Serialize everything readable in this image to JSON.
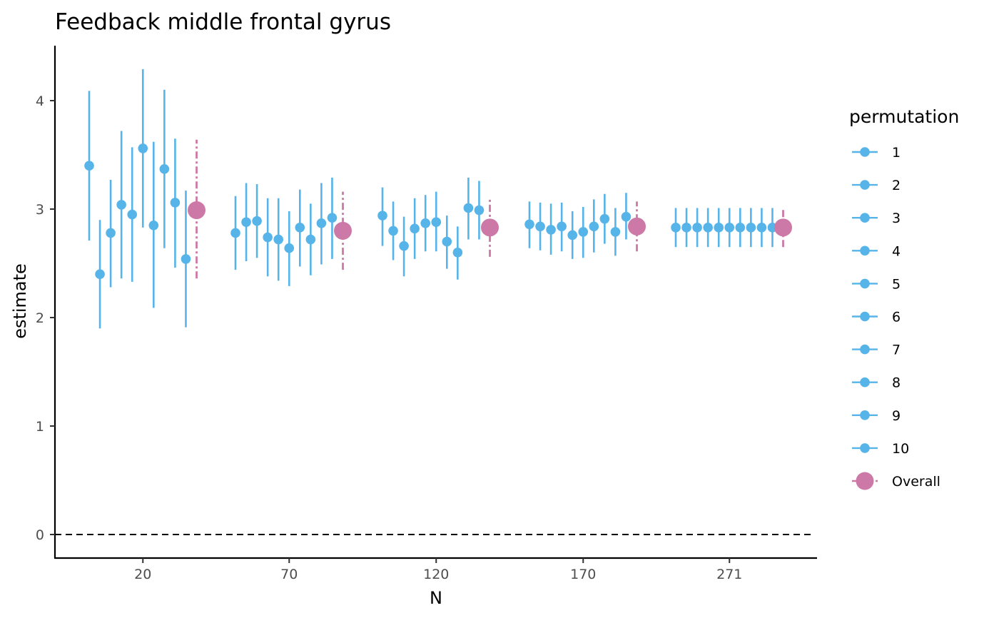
{
  "chart_data": {
    "type": "scatter",
    "title": "Feedback middle frontal gyrus",
    "xlabel": "N",
    "ylabel": "estimate",
    "categories": [
      "20",
      "70",
      "120",
      "170",
      "271"
    ],
    "ylim": [
      -0.2,
      4.5
    ],
    "yticks": [
      0,
      1,
      2,
      3,
      4
    ],
    "reference_line": {
      "y": 0,
      "style": "dashed"
    },
    "grid": false,
    "legend": {
      "title": "permutation",
      "position": "right",
      "entries": [
        "1",
        "2",
        "3",
        "4",
        "5",
        "6",
        "7",
        "8",
        "9",
        "10",
        "Overall"
      ]
    },
    "colors": {
      "permutation": "#56B4E9",
      "overall": "#CC79A7",
      "axis": "#000000",
      "tick_text": "#4d4d4d"
    },
    "groups": [
      {
        "N": "20",
        "permutations": [
          {
            "est": 3.4,
            "lo": 2.71,
            "hi": 4.09
          },
          {
            "est": 2.4,
            "lo": 1.9,
            "hi": 2.9
          },
          {
            "est": 2.78,
            "lo": 2.28,
            "hi": 3.27
          },
          {
            "est": 3.04,
            "lo": 2.36,
            "hi": 3.72
          },
          {
            "est": 2.95,
            "lo": 2.33,
            "hi": 3.57
          },
          {
            "est": 3.56,
            "lo": 2.83,
            "hi": 4.29
          },
          {
            "est": 2.85,
            "lo": 2.09,
            "hi": 3.62
          },
          {
            "est": 3.37,
            "lo": 2.64,
            "hi": 4.1
          },
          {
            "est": 3.06,
            "lo": 2.46,
            "hi": 3.65
          },
          {
            "est": 2.54,
            "lo": 1.91,
            "hi": 3.17
          }
        ],
        "overall": {
          "est": 2.99,
          "lo": 2.36,
          "hi": 3.64
        }
      },
      {
        "N": "70",
        "permutations": [
          {
            "est": 2.78,
            "lo": 2.44,
            "hi": 3.12
          },
          {
            "est": 2.88,
            "lo": 2.52,
            "hi": 3.24
          },
          {
            "est": 2.89,
            "lo": 2.55,
            "hi": 3.23
          },
          {
            "est": 2.74,
            "lo": 2.38,
            "hi": 3.1
          },
          {
            "est": 2.72,
            "lo": 2.34,
            "hi": 3.1
          },
          {
            "est": 2.64,
            "lo": 2.29,
            "hi": 2.98
          },
          {
            "est": 2.83,
            "lo": 2.47,
            "hi": 3.18
          },
          {
            "est": 2.72,
            "lo": 2.39,
            "hi": 3.05
          },
          {
            "est": 2.87,
            "lo": 2.49,
            "hi": 3.24
          },
          {
            "est": 2.92,
            "lo": 2.54,
            "hi": 3.29
          }
        ],
        "overall": {
          "est": 2.8,
          "lo": 2.44,
          "hi": 3.16
        }
      },
      {
        "N": "120",
        "permutations": [
          {
            "est": 2.94,
            "lo": 2.66,
            "hi": 3.2
          },
          {
            "est": 2.8,
            "lo": 2.53,
            "hi": 3.07
          },
          {
            "est": 2.66,
            "lo": 2.38,
            "hi": 2.93
          },
          {
            "est": 2.82,
            "lo": 2.54,
            "hi": 3.1
          },
          {
            "est": 2.87,
            "lo": 2.61,
            "hi": 3.13
          },
          {
            "est": 2.88,
            "lo": 2.61,
            "hi": 3.16
          },
          {
            "est": 2.7,
            "lo": 2.45,
            "hi": 2.94
          },
          {
            "est": 2.6,
            "lo": 2.35,
            "hi": 2.84
          },
          {
            "est": 3.01,
            "lo": 2.72,
            "hi": 3.29
          },
          {
            "est": 2.99,
            "lo": 2.72,
            "hi": 3.26
          }
        ],
        "overall": {
          "est": 2.83,
          "lo": 2.56,
          "hi": 3.1
        }
      },
      {
        "N": "170",
        "permutations": [
          {
            "est": 2.86,
            "lo": 2.64,
            "hi": 3.07
          },
          {
            "est": 2.84,
            "lo": 2.62,
            "hi": 3.06
          },
          {
            "est": 2.81,
            "lo": 2.58,
            "hi": 3.05
          },
          {
            "est": 2.84,
            "lo": 2.61,
            "hi": 3.06
          },
          {
            "est": 2.76,
            "lo": 2.54,
            "hi": 2.98
          },
          {
            "est": 2.79,
            "lo": 2.55,
            "hi": 3.02
          },
          {
            "est": 2.84,
            "lo": 2.6,
            "hi": 3.09
          },
          {
            "est": 2.91,
            "lo": 2.68,
            "hi": 3.14
          },
          {
            "est": 2.79,
            "lo": 2.57,
            "hi": 3.01
          },
          {
            "est": 2.93,
            "lo": 2.72,
            "hi": 3.15
          }
        ],
        "overall": {
          "est": 2.84,
          "lo": 2.61,
          "hi": 3.07
        }
      },
      {
        "N": "271",
        "permutations": [
          {
            "est": 2.83,
            "lo": 2.65,
            "hi": 3.01
          },
          {
            "est": 2.83,
            "lo": 2.65,
            "hi": 3.01
          },
          {
            "est": 2.83,
            "lo": 2.65,
            "hi": 3.01
          },
          {
            "est": 2.83,
            "lo": 2.65,
            "hi": 3.01
          },
          {
            "est": 2.83,
            "lo": 2.65,
            "hi": 3.01
          },
          {
            "est": 2.83,
            "lo": 2.65,
            "hi": 3.01
          },
          {
            "est": 2.83,
            "lo": 2.65,
            "hi": 3.01
          },
          {
            "est": 2.83,
            "lo": 2.65,
            "hi": 3.01
          },
          {
            "est": 2.83,
            "lo": 2.65,
            "hi": 3.01
          },
          {
            "est": 2.83,
            "lo": 2.65,
            "hi": 3.01
          }
        ],
        "overall": {
          "est": 2.83,
          "lo": 2.65,
          "hi": 3.01
        }
      }
    ]
  }
}
